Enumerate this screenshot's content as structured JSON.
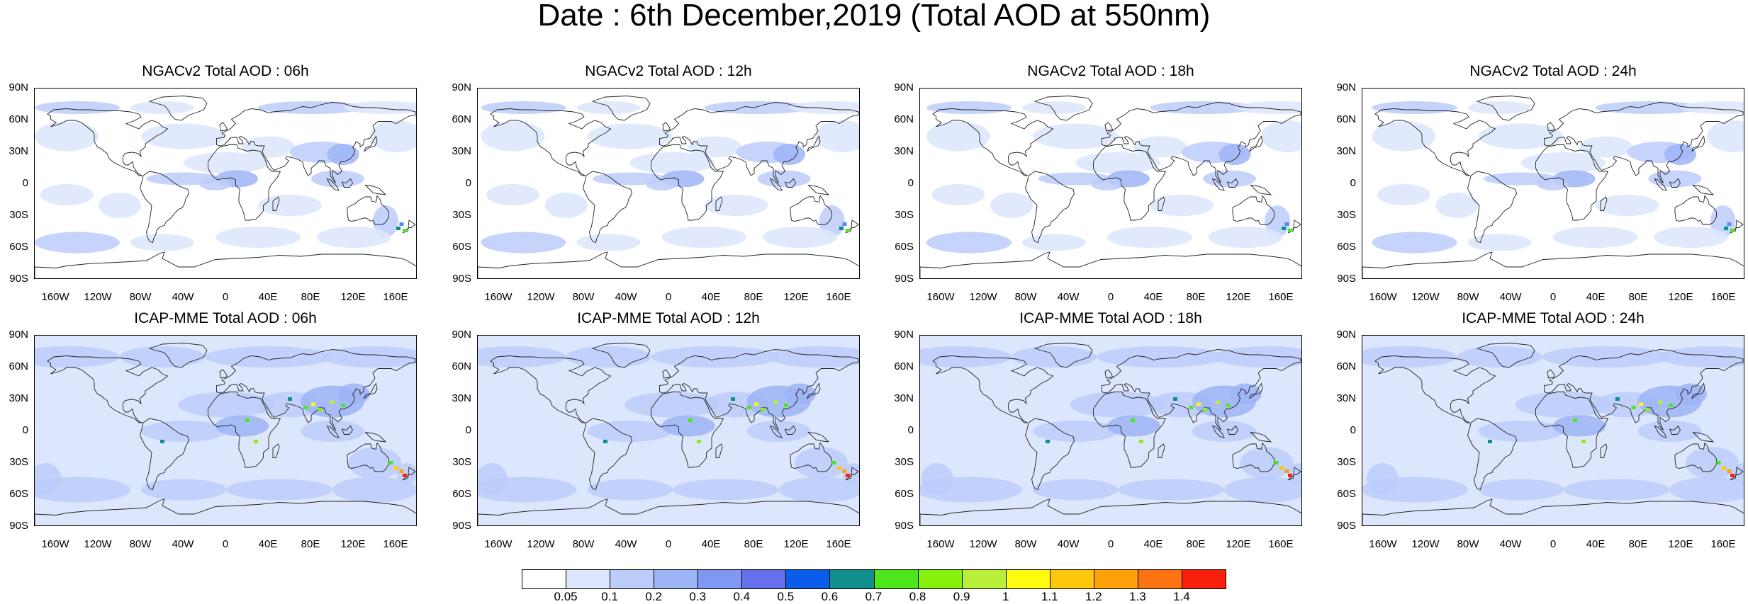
{
  "figure": {
    "title": "Date : 6th December,2019 (Total AOD at 550nm)"
  },
  "axes": {
    "lat_ticks": [
      "90N",
      "60N",
      "30N",
      "0",
      "30S",
      "60S",
      "90S"
    ],
    "lon_ticks": [
      "160W",
      "120W",
      "80W",
      "40W",
      "0",
      "40E",
      "80E",
      "120E",
      "160E"
    ],
    "lon_tick_values": [
      -160,
      -120,
      -80,
      -40,
      0,
      40,
      80,
      120,
      160
    ],
    "lat_tick_values": [
      90,
      60,
      30,
      0,
      -30,
      -60,
      -90
    ],
    "lon_range": [
      -180,
      180
    ],
    "lat_range": [
      -90,
      90
    ]
  },
  "panels": [
    {
      "title": "NGACv2 Total AOD : 06h",
      "model": "NGACv2",
      "hour": "06h",
      "row": 0,
      "col": 0
    },
    {
      "title": "NGACv2 Total AOD : 12h",
      "model": "NGACv2",
      "hour": "12h",
      "row": 0,
      "col": 1
    },
    {
      "title": "NGACv2 Total AOD : 18h",
      "model": "NGACv2",
      "hour": "18h",
      "row": 0,
      "col": 2
    },
    {
      "title": "NGACv2 Total AOD : 24h",
      "model": "NGACv2",
      "hour": "24h",
      "row": 0,
      "col": 3
    },
    {
      "title": "ICAP-MME Total AOD : 06h",
      "model": "ICAP-MME",
      "hour": "06h",
      "row": 1,
      "col": 0
    },
    {
      "title": "ICAP-MME Total AOD : 12h",
      "model": "ICAP-MME",
      "hour": "12h",
      "row": 1,
      "col": 1
    },
    {
      "title": "ICAP-MME Total AOD : 18h",
      "model": "ICAP-MME",
      "hour": "18h",
      "row": 1,
      "col": 2
    },
    {
      "title": "ICAP-MME Total AOD : 24h",
      "model": "ICAP-MME",
      "hour": "24h",
      "row": 1,
      "col": 3
    }
  ],
  "colorbar": {
    "labels": [
      "0.05",
      "0.1",
      "0.2",
      "0.3",
      "0.4",
      "0.5",
      "0.6",
      "0.7",
      "0.8",
      "0.9",
      "1",
      "1.1",
      "1.2",
      "1.3",
      "1.4"
    ],
    "colors": [
      "#ffffff",
      "#dce6fd",
      "#bccdfa",
      "#9db4f6",
      "#7f98f2",
      "#6670ec",
      "#0a5de8",
      "#118f8e",
      "#4ce61a",
      "#87f00c",
      "#b8ef3a",
      "#fffb10",
      "#ffc80c",
      "#ffa20a",
      "#fb7312",
      "#f9200e"
    ]
  },
  "map_colors": {
    "ocean": "#ffffff",
    "low_aod": "#dce6fd",
    "mid_aod": "#bccdfa",
    "high_aod": "#9db4f6",
    "coast": "#222222"
  }
}
